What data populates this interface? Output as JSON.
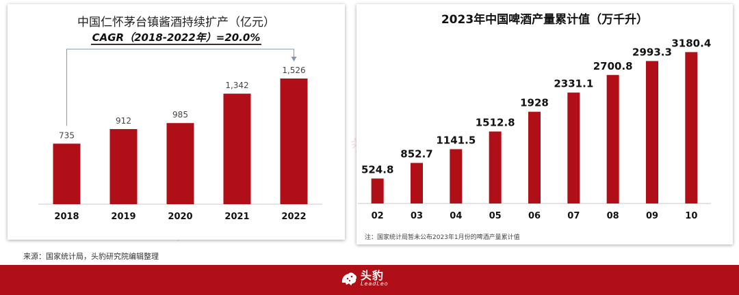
{
  "left_chart": {
    "title": "中国仁怀茅台镇酱酒持续扩产（亿元）",
    "cagr_label": "CAGR（2018-2022年）=20.0%"
  },
  "right_chart": {
    "title": "2023年中国啤酒产量累计值（万千升）",
    "note": "注：国家统计局暂未公布2023年1月份的啤酒产量累计值"
  },
  "source": "来源：国家统计局，头豹研究院编辑整理",
  "brand": {
    "name_cn": "头豹",
    "name_en": "LeadLeo",
    "watermark": "头豹"
  },
  "colors": {
    "bar": "#b10f17",
    "footer": "#b10f17",
    "arrow": "#7f97b0"
  },
  "chart_data": [
    {
      "type": "bar",
      "title": "中国仁怀茅台镇酱酒持续扩产（亿元）",
      "categories": [
        "2018",
        "2019",
        "2020",
        "2021",
        "2022"
      ],
      "values": [
        735,
        912,
        985,
        1342,
        1526
      ],
      "value_labels": [
        "735",
        "912",
        "985",
        "1,342",
        "1,526"
      ],
      "annotation": "CAGR（2018-2022年）=20.0%",
      "ylim": [
        0,
        1700
      ],
      "grid": false
    },
    {
      "type": "bar",
      "title": "2023年中国啤酒产量累计值（万千升）",
      "categories": [
        "02",
        "03",
        "04",
        "05",
        "06",
        "07",
        "08",
        "09",
        "10"
      ],
      "values": [
        524.8,
        852.7,
        1141.5,
        1512.8,
        1928,
        2331.1,
        2700.8,
        2993.3,
        3180.4
      ],
      "value_labels": [
        "524.8",
        "852.7",
        "1141.5",
        "1512.8",
        "1928",
        "2331.1",
        "2700.8",
        "2993.3",
        "3180.4"
      ],
      "ylim": [
        0,
        3300
      ],
      "grid": false
    }
  ]
}
